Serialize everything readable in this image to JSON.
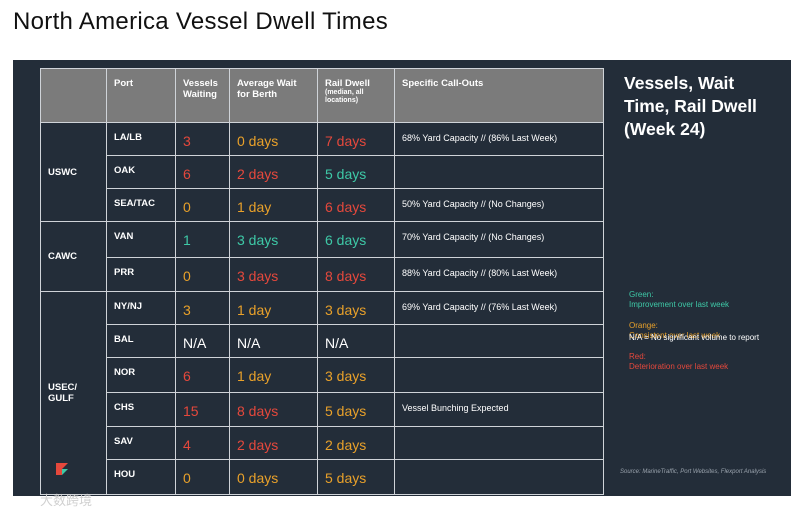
{
  "header": {
    "title": "North America Vessel Dwell Times"
  },
  "table": {
    "columns": [
      "Port",
      "Vessels Waiting",
      "Average Wait for Berth",
      "Rail Dwell",
      "Specific Call-Outs"
    ],
    "rail_dwell_note": "(median, all locations)",
    "groups": [
      {
        "region": "USWC",
        "rows": [
          {
            "port": "LA/LB",
            "vessels": {
              "text": "3",
              "color": "#e5483c"
            },
            "wait": {
              "text": "0 days",
              "color": "#e9a12a"
            },
            "rail": {
              "text": "7 days",
              "color": "#e5483c"
            },
            "callout": "68% Yard Capacity // (86% Last Week)"
          },
          {
            "port": "OAK",
            "vessels": {
              "text": "6",
              "color": "#e5483c"
            },
            "wait": {
              "text": "2 days",
              "color": "#e5483c"
            },
            "rail": {
              "text": "5 days",
              "color": "#3ec9a7"
            },
            "callout": null
          },
          {
            "port": "SEA/TAC",
            "vessels": {
              "text": "0",
              "color": "#e9a12a"
            },
            "wait": {
              "text": "1 day",
              "color": "#e9a12a"
            },
            "rail": {
              "text": "6 days",
              "color": "#e5483c"
            },
            "callout": "50% Yard Capacity // (No Changes)"
          }
        ]
      },
      {
        "region": "CAWC",
        "rows": [
          {
            "port": "VAN",
            "vessels": {
              "text": "1",
              "color": "#3ec9a7"
            },
            "wait": {
              "text": "3 days",
              "color": "#3ec9a7"
            },
            "rail": {
              "text": "6 days",
              "color": "#3ec9a7"
            },
            "callout": "70% Yard Capacity // (No Changes)"
          },
          {
            "port": "PRR",
            "vessels": {
              "text": "0",
              "color": "#e9a12a"
            },
            "wait": {
              "text": "3 days",
              "color": "#e5483c"
            },
            "rail": {
              "text": "8 days",
              "color": "#e5483c"
            },
            "callout": "88% Yard Capacity // (80% Last Week)"
          }
        ]
      },
      {
        "region": "USEC/ GULF",
        "rows": [
          {
            "port": "NY/NJ",
            "vessels": {
              "text": "3",
              "color": "#e9a12a"
            },
            "wait": {
              "text": "1 day",
              "color": "#e9a12a"
            },
            "rail": {
              "text": "3 days",
              "color": "#e9a12a"
            },
            "callout": "69% Yard Capacity // (76% Last Week)"
          },
          {
            "port": "BAL",
            "vessels": {
              "text": "N/A",
              "color": "#ffffff"
            },
            "wait": {
              "text": "N/A",
              "color": "#ffffff"
            },
            "rail": {
              "text": "N/A",
              "color": "#ffffff"
            },
            "callout": null
          },
          {
            "port": "NOR",
            "vessels": {
              "text": "6",
              "color": "#e5483c"
            },
            "wait": {
              "text": "1 day",
              "color": "#e9a12a"
            },
            "rail": {
              "text": "3 days",
              "color": "#e9a12a"
            },
            "callout": null
          },
          {
            "port": "CHS",
            "vessels": {
              "text": "15",
              "color": "#e5483c"
            },
            "wait": {
              "text": "8 days",
              "color": "#e5483c"
            },
            "rail": {
              "text": "5 days",
              "color": "#e9a12a"
            },
            "callout": "Vessel Bunching Expected"
          },
          {
            "port": "SAV",
            "vessels": {
              "text": "4",
              "color": "#e5483c"
            },
            "wait": {
              "text": "2 days",
              "color": "#e5483c"
            },
            "rail": {
              "text": "2 days",
              "color": "#e9a12a"
            },
            "callout": null
          },
          {
            "port": "HOU",
            "vessels": {
              "text": "0",
              "color": "#e9a12a"
            },
            "wait": {
              "text": "0 days",
              "color": "#e9a12a"
            },
            "rail": {
              "text": "5 days",
              "color": "#e9a12a"
            },
            "callout": null
          }
        ]
      }
    ]
  },
  "legend": {
    "title": "Vessels, Wait Time, Rail Dwell (Week 24)",
    "items": [
      {
        "label": "Green:",
        "text": "Improvement over last week",
        "color": "#3ec9a7"
      },
      {
        "label": "Orange:",
        "text": "Consistent over last week",
        "color": "#e9a12a"
      },
      {
        "label": "Red:",
        "text": "Deterioration over last week",
        "color": "#e5483c"
      }
    ],
    "na_note": "N/A = No significant volume to report",
    "source": "Source: MarineTraffic, Port Websites, Flexport Analysis"
  },
  "watermark": "大数跨境"
}
